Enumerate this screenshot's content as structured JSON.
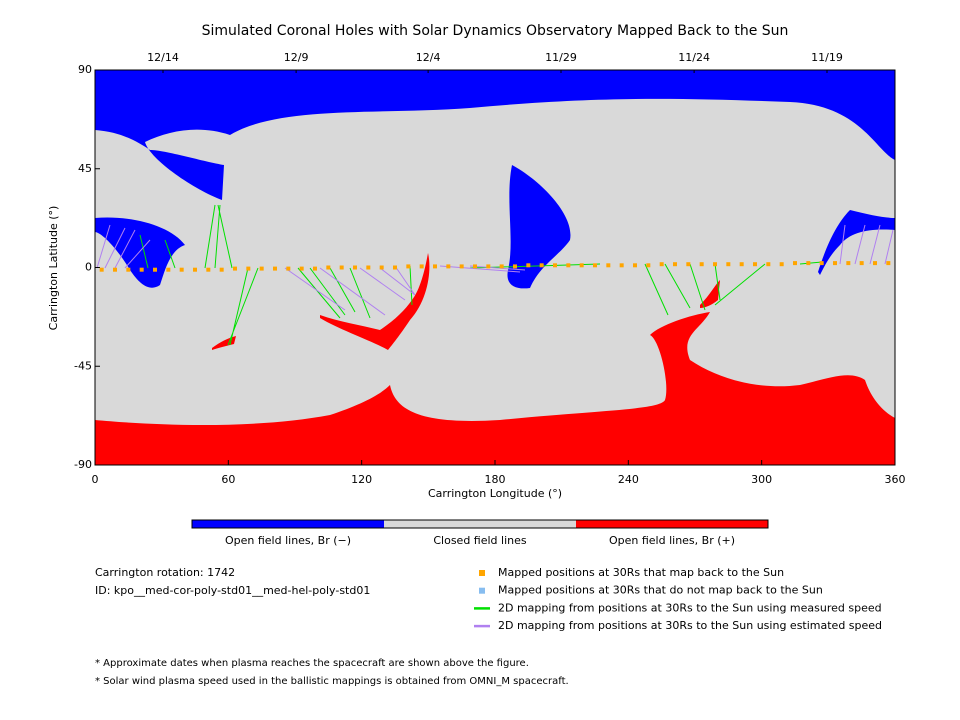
{
  "chart_data": {
    "type": "scatter",
    "title": "Simulated Coronal Holes with Solar Dynamics Observatory Mapped Back to the Sun",
    "xlabel": "Carrington Longitude (°)",
    "ylabel": "Carrington Latitude (°)",
    "xlim": [
      0,
      360
    ],
    "ylim": [
      -90,
      90
    ],
    "xticks": [
      0,
      60,
      120,
      180,
      240,
      300,
      360
    ],
    "yticks": [
      -90,
      -45,
      0,
      45,
      90
    ],
    "x2ticks": [
      {
        "value": 30.6,
        "label": "12/14"
      },
      {
        "value": 90.5,
        "label": "12/9"
      },
      {
        "value": 149.9,
        "label": "12/4"
      },
      {
        "value": 209.7,
        "label": "11/29"
      },
      {
        "value": 269.6,
        "label": "11/24"
      },
      {
        "value": 329.4,
        "label": "11/19"
      }
    ],
    "series": [
      {
        "name": "Mapped positions at 30Rs that map back to the Sun",
        "color": "#ffa500",
        "marker": "square",
        "x": [
          3,
          9,
          15,
          21,
          27,
          33,
          39,
          45,
          51,
          57,
          63,
          69,
          75,
          81,
          87,
          93,
          99,
          105,
          111,
          117,
          123,
          129,
          135,
          141,
          147,
          153,
          159,
          165,
          171,
          177,
          183,
          189,
          195,
          201,
          207,
          213,
          219,
          225,
          231,
          237,
          243,
          249,
          255,
          261,
          267,
          273,
          279,
          285,
          291,
          297,
          303,
          309,
          315,
          321,
          327,
          333,
          339,
          345,
          351,
          357
        ],
        "values": [
          -1,
          -1,
          -1,
          -1,
          -1,
          -1,
          -1,
          -1,
          -1,
          -1,
          -0.5,
          -0.5,
          -0.5,
          -0.5,
          -0.5,
          -0.5,
          -0.5,
          0,
          0,
          0,
          0,
          0,
          0,
          0.5,
          0.5,
          0.5,
          0.5,
          0.5,
          0.5,
          0.5,
          0.5,
          0.5,
          1,
          1,
          1,
          1,
          1,
          1,
          1,
          1,
          1,
          1,
          1.5,
          1.5,
          1.5,
          1.5,
          1.5,
          1.5,
          1.5,
          1.5,
          1.5,
          1.5,
          2,
          2,
          2,
          2,
          2,
          2,
          2,
          2
        ]
      },
      {
        "name": "Mapped positions at 30Rs that do not map back to the Sun",
        "color": "#87bdf0",
        "marker": "square",
        "x": [],
        "values": []
      },
      {
        "name": "2D mapping from positions at 30Rs to the Sun using measured speed",
        "color": "#00e000",
        "marker": "line",
        "x": [],
        "values": []
      },
      {
        "name": "2D mapping from positions at 30Rs to the Sun using estimated speed",
        "color": "#b080f0",
        "marker": "line",
        "x": [],
        "values": []
      }
    ],
    "colorbar": [
      {
        "label": "Open field lines, Br (−)",
        "color": "#0000ff"
      },
      {
        "label": "Closed field lines",
        "color": "#d9d9d9"
      },
      {
        "label": "Open field lines, Br (+)",
        "color": "#ff0000"
      }
    ],
    "info": [
      "Carrington rotation: 1742",
      "ID: kpo__med-cor-poly-std01__med-hel-poly-std01"
    ],
    "notes": [
      "* Approximate dates when plasma reaches the spacecraft are shown above the figure.",
      "* Solar wind plasma speed used in the ballistic mappings is obtained from OMNI_M spacecraft."
    ]
  }
}
